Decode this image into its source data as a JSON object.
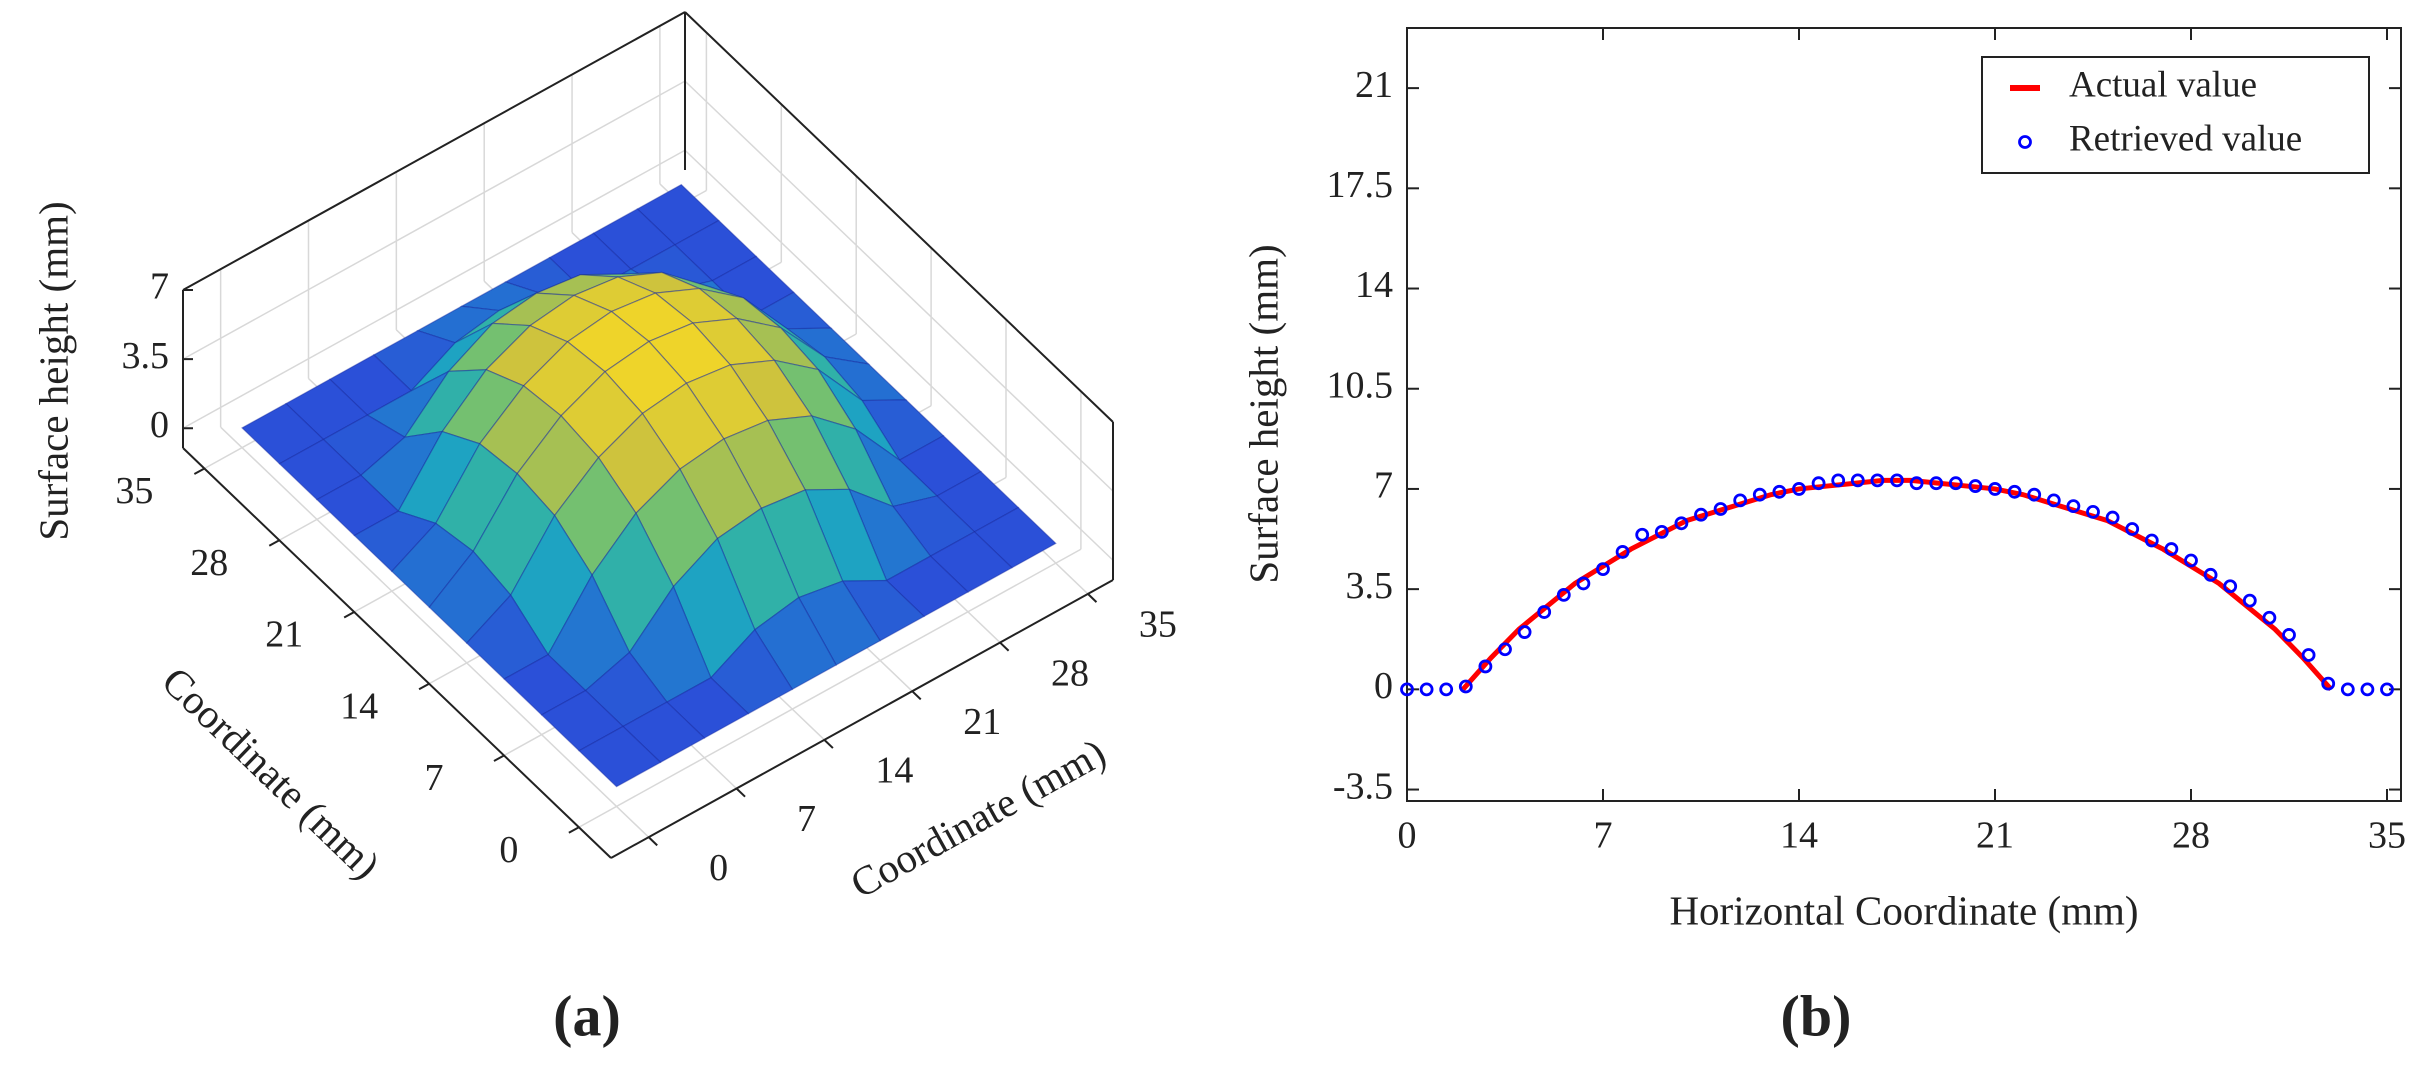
{
  "chart_data": [
    {
      "type": "surface",
      "panel_label": "(a)",
      "xlabel": "Coordinate (mm)",
      "ylabel": "Coordinate (mm)",
      "zlabel": "Surface height (mm)",
      "x": [
        0,
        3.5,
        7,
        10.5,
        14,
        17.5,
        21,
        24.5,
        28,
        31.5,
        35
      ],
      "y": [
        0,
        3.5,
        7,
        10.5,
        14,
        17.5,
        21,
        24.5,
        28,
        31.5,
        35
      ],
      "z": [
        [
          0,
          0,
          0,
          0,
          0,
          0,
          0,
          0,
          0,
          0,
          0
        ],
        [
          0,
          0,
          0,
          0,
          1.2,
          1.6,
          1.2,
          0,
          0,
          0,
          0
        ],
        [
          0,
          0,
          0.7,
          2.8,
          4.0,
          4.3,
          4.0,
          2.8,
          0.7,
          0,
          0
        ],
        [
          0,
          0,
          2.8,
          4.7,
          5.7,
          6.0,
          5.7,
          4.7,
          2.8,
          0,
          0
        ],
        [
          0,
          1.2,
          4.0,
          5.7,
          6.7,
          7.0,
          6.7,
          5.7,
          4.0,
          1.2,
          0
        ],
        [
          0,
          1.6,
          4.3,
          6.0,
          7.0,
          7.3,
          7.0,
          6.0,
          4.3,
          1.6,
          0
        ],
        [
          0,
          1.2,
          4.0,
          5.7,
          6.7,
          7.0,
          6.7,
          5.7,
          4.0,
          1.2,
          0
        ],
        [
          0,
          0,
          2.8,
          4.7,
          5.7,
          6.0,
          5.7,
          4.7,
          2.8,
          0,
          0
        ],
        [
          0,
          0,
          0.7,
          2.8,
          4.0,
          4.3,
          4.0,
          2.8,
          0.7,
          0,
          0
        ],
        [
          0,
          0,
          0,
          0,
          1.2,
          1.6,
          1.2,
          0,
          0,
          0,
          0
        ],
        [
          0,
          0,
          0,
          0,
          0,
          0,
          0,
          0,
          0,
          0,
          0
        ]
      ],
      "colormap": [
        "#2b50d8",
        "#1aa0c8",
        "#45c08a",
        "#c8c040",
        "#f5d826"
      ],
      "xlim": [
        -3,
        37
      ],
      "ylim": [
        -3,
        37
      ],
      "zlim": [
        -1,
        7
      ],
      "xticks": [
        0,
        7,
        14,
        21,
        28,
        35
      ],
      "yticks": [
        0,
        7,
        14,
        21,
        28,
        35
      ],
      "zticks": [
        0,
        3.5,
        7
      ],
      "grid": true
    },
    {
      "type": "line",
      "panel_label": "(b)",
      "xlabel": "Horizontal Coordinate (mm)",
      "ylabel": "Surface height (mm)",
      "xlim": [
        0,
        35.5
      ],
      "ylim": [
        -3.9,
        23.1
      ],
      "xticks": [
        0,
        7,
        14,
        21,
        28,
        35
      ],
      "yticks": [
        -3.5,
        0,
        3.5,
        7,
        10.5,
        14,
        17.5,
        21
      ],
      "legend": "upper right",
      "grid": false,
      "series": [
        {
          "name": "Actual value",
          "color": "#ff0000",
          "style": "line",
          "x": [
            2,
            3,
            4,
            5,
            6,
            7,
            8,
            9,
            10,
            11,
            12,
            13,
            14,
            15,
            16,
            17,
            18,
            19,
            20,
            21,
            22,
            23,
            24,
            25,
            26,
            27,
            28,
            29,
            30,
            31,
            32,
            33
          ],
          "values": [
            0,
            1.1,
            2.1,
            2.9,
            3.7,
            4.3,
            4.9,
            5.4,
            5.9,
            6.2,
            6.5,
            6.8,
            7.0,
            7.1,
            7.2,
            7.3,
            7.3,
            7.2,
            7.1,
            7.0,
            6.8,
            6.5,
            6.2,
            5.9,
            5.4,
            4.9,
            4.3,
            3.7,
            2.9,
            2.1,
            1.1,
            0
          ]
        },
        {
          "name": "Retrieved value",
          "color": "#0000ff",
          "style": "marker",
          "x": [
            0,
            0.7,
            1.4,
            2.1,
            2.8,
            3.5,
            4.2,
            4.9,
            5.6,
            6.3,
            7,
            7.7,
            8.4,
            9.1,
            9.8,
            10.5,
            11.2,
            11.9,
            12.6,
            13.3,
            14,
            14.7,
            15.4,
            16.1,
            16.8,
            17.5,
            18.2,
            18.9,
            19.6,
            20.3,
            21,
            21.7,
            22.4,
            23.1,
            23.8,
            24.5,
            25.2,
            25.9,
            26.6,
            27.3,
            28,
            28.7,
            29.4,
            30.1,
            30.8,
            31.5,
            32.2,
            32.9,
            33.6,
            34.3,
            35
          ],
          "values": [
            0,
            0,
            0,
            0.1,
            0.8,
            1.4,
            2.0,
            2.7,
            3.3,
            3.7,
            4.2,
            4.8,
            5.4,
            5.5,
            5.8,
            6.1,
            6.3,
            6.6,
            6.8,
            6.9,
            7.0,
            7.2,
            7.3,
            7.3,
            7.3,
            7.3,
            7.2,
            7.2,
            7.2,
            7.1,
            7.0,
            6.9,
            6.8,
            6.6,
            6.4,
            6.2,
            6.0,
            5.6,
            5.2,
            4.9,
            4.5,
            4.0,
            3.6,
            3.1,
            2.5,
            1.9,
            1.2,
            0.2,
            0,
            0,
            0
          ]
        }
      ]
    }
  ]
}
